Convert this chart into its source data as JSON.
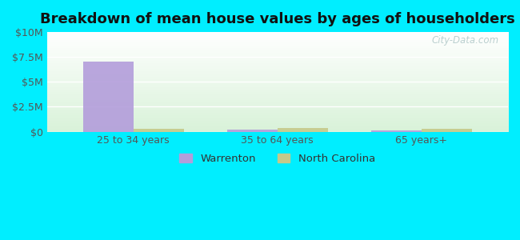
{
  "title": "Breakdown of mean house values by ages of householders",
  "categories": [
    "25 to 34 years",
    "35 to 64 years",
    "65 years+"
  ],
  "warrenton_values": [
    7000000,
    200000,
    130000
  ],
  "nc_values": [
    280000,
    330000,
    280000
  ],
  "warrenton_color": "#b39ddb",
  "nc_color": "#c5c98a",
  "ylim": [
    0,
    10000000
  ],
  "yticks": [
    0,
    2500000,
    5000000,
    7500000,
    10000000
  ],
  "ytick_labels": [
    "$0",
    "$2.5M",
    "$5M",
    "$7.5M",
    "$10M"
  ],
  "fig_bg_color": "#00eeff",
  "bar_width": 0.35,
  "watermark": "City-Data.com",
  "legend_warrenton": "Warrenton",
  "legend_nc": "North Carolina",
  "title_fontsize": 13,
  "tick_fontsize": 9
}
